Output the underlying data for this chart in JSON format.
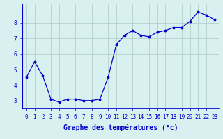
{
  "hours": [
    0,
    1,
    2,
    3,
    4,
    5,
    6,
    7,
    8,
    9,
    10,
    11,
    12,
    13,
    14,
    15,
    16,
    17,
    18,
    19,
    20,
    21,
    22,
    23
  ],
  "temperatures": [
    4.5,
    5.5,
    4.6,
    3.1,
    2.9,
    3.1,
    3.1,
    3.0,
    3.0,
    3.1,
    4.5,
    6.6,
    7.2,
    7.5,
    7.2,
    7.1,
    7.4,
    7.5,
    7.7,
    7.7,
    8.1,
    8.7,
    8.5,
    8.2
  ],
  "line_color": "#0000cc",
  "marker": "o",
  "marker_size": 1.8,
  "line_width": 0.9,
  "bg_color": "#d8f0f0",
  "grid_color": "#aec8c8",
  "xlabel": "Graphe des températures (°c)",
  "xlabel_color": "#0000cc",
  "xlabel_fontsize": 7.0,
  "tick_color": "#0000cc",
  "tick_fontsize": 5.5,
  "ylim": [
    2.5,
    9.2
  ],
  "yticks": [
    3,
    4,
    5,
    6,
    7,
    8
  ],
  "spine_color": "#0000cc"
}
